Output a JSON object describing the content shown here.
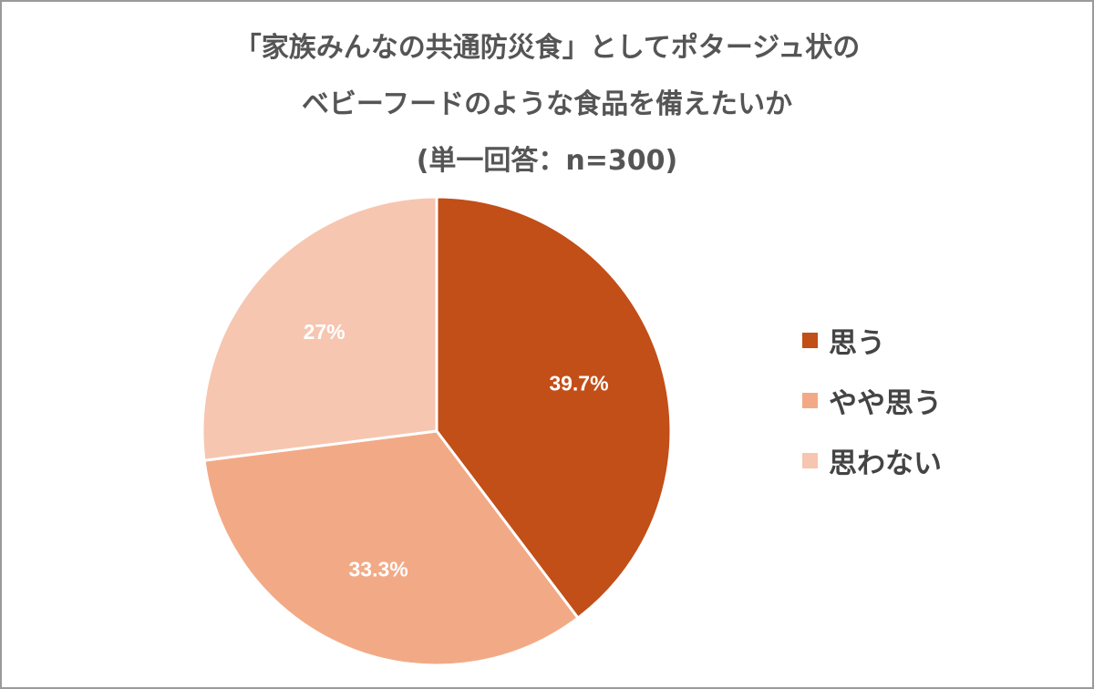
{
  "title": {
    "line1": "「家族みんなの共通防災食」としてポタージュ状の",
    "line2": "ベビーフードのような食品を備えたいか",
    "line3": "(単一回答：n=300)"
  },
  "chart_data": {
    "type": "pie",
    "title": "「家族みんなの共通防災食」としてポタージュ状のベビーフードのような食品を備えたいか (単一回答：n=300)",
    "categories": [
      "思う",
      "やや思う",
      "思わない"
    ],
    "values": [
      39.7,
      33.3,
      27
    ],
    "labels": [
      "39.7%",
      "33.3%",
      "27%"
    ],
    "colors": [
      "#c24e18",
      "#f2aa86",
      "#f6c6b0"
    ],
    "start": "12 o'clock, clockwise",
    "legend_position": "right"
  }
}
